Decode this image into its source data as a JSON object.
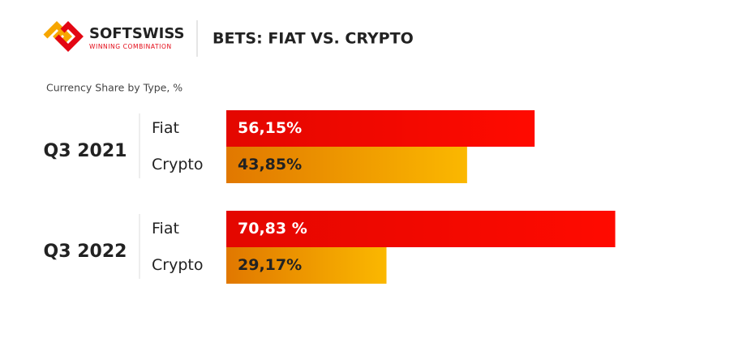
{
  "chart_data": {
    "type": "bar",
    "orientation": "horizontal",
    "brand": "SOFTSWISS",
    "tagline": "WINNING COMBINATION",
    "title": "BETS: FIAT VS. CRYPTO",
    "subtitle": "Currency Share by Type, %",
    "categories": [
      "Q3 2021",
      "Q3 2022"
    ],
    "series": [
      {
        "name": "Fiat",
        "color": "#ff0a00",
        "label_color": "#ffffff",
        "values": [
          56.15,
          70.83
        ],
        "value_labels": [
          "56,15%",
          "70,83 %"
        ]
      },
      {
        "name": "Crypto",
        "color": "#fbb800",
        "label_color": "#222222",
        "values": [
          43.85,
          29.17
        ],
        "value_labels": [
          "43,85%",
          "29,17%"
        ]
      }
    ]
  }
}
